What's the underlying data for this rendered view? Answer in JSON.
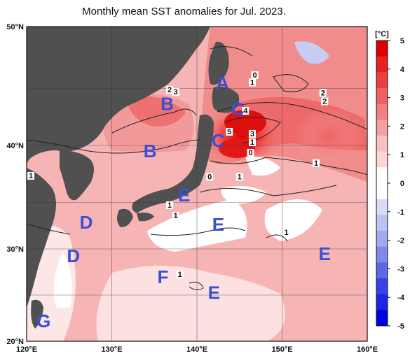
{
  "title": "Monthly mean SST anomalies for Jul. 2023.",
  "axes": {
    "lon_labels": [
      "120°E",
      "130°E",
      "140°E",
      "150°E",
      "160°E"
    ],
    "lat_labels": [
      "50°N",
      "40°N",
      "30°N",
      "20°N"
    ]
  },
  "colorbar": {
    "unit": "[°C]",
    "ticks": [
      "5",
      "4",
      "3",
      "2",
      "1",
      "0",
      "-1",
      "-2",
      "-3",
      "-4",
      "-5"
    ],
    "colors": {
      "max": "#e00000",
      "strong_positive": "#f06060",
      "moderate_positive": "#f4a0a0",
      "weak_positive": "#fbd6d6",
      "neutral": "#ffffff",
      "weak_negative": "#d8dcf6",
      "moderate_negative": "#a0a8ee",
      "strong_negative": "#5c68e8",
      "min": "#0000e6"
    }
  },
  "land_color": "#505050",
  "regions": [
    {
      "label": "A",
      "lon": 143.0,
      "lat": 44.5
    },
    {
      "label": "B",
      "lon": 136.5,
      "lat": 42.5
    },
    {
      "label": "B",
      "lon": 134.5,
      "lat": 38.0
    },
    {
      "label": "C",
      "lon": 144.8,
      "lat": 42.0
    },
    {
      "label": "C",
      "lon": 142.5,
      "lat": 39.0
    },
    {
      "label": "D",
      "lon": 127.0,
      "lat": 31.2
    },
    {
      "label": "D",
      "lon": 125.5,
      "lat": 28.0
    },
    {
      "label": "E",
      "lon": 138.5,
      "lat": 33.8
    },
    {
      "label": "E",
      "lon": 142.5,
      "lat": 31.0
    },
    {
      "label": "E",
      "lon": 142.0,
      "lat": 24.5
    },
    {
      "label": "E",
      "lon": 155.0,
      "lat": 28.2
    },
    {
      "label": "F",
      "lon": 136.0,
      "lat": 26.0
    },
    {
      "label": "G",
      "lon": 122.0,
      "lat": 21.8
    }
  ],
  "contour_labels": [
    {
      "text": "2",
      "lon": 136.8,
      "lat": 43.8
    },
    {
      "text": "3",
      "lon": 137.5,
      "lat": 43.6
    },
    {
      "text": "0",
      "lon": 146.8,
      "lat": 45.2
    },
    {
      "text": "1",
      "lon": 146.5,
      "lat": 44.5
    },
    {
      "text": "2",
      "lon": 154.8,
      "lat": 43.5
    },
    {
      "text": "2",
      "lon": 155.0,
      "lat": 42.7
    },
    {
      "text": "4",
      "lon": 145.7,
      "lat": 41.8
    },
    {
      "text": "5",
      "lon": 143.8,
      "lat": 39.8
    },
    {
      "text": "3",
      "lon": 146.5,
      "lat": 39.6
    },
    {
      "text": "1",
      "lon": 146.5,
      "lat": 38.8
    },
    {
      "text": "0",
      "lon": 146.3,
      "lat": 37.8
    },
    {
      "text": "1",
      "lon": 154.0,
      "lat": 36.8
    },
    {
      "text": "1",
      "lon": 120.5,
      "lat": 35.6
    },
    {
      "text": "0",
      "lon": 141.5,
      "lat": 35.5
    },
    {
      "text": "1",
      "lon": 145.0,
      "lat": 35.5
    },
    {
      "text": "1",
      "lon": 136.8,
      "lat": 32.8
    },
    {
      "text": "1",
      "lon": 137.5,
      "lat": 31.8
    },
    {
      "text": "1",
      "lon": 150.5,
      "lat": 30.2
    },
    {
      "text": "1",
      "lon": 138.0,
      "lat": 26.2
    }
  ]
}
